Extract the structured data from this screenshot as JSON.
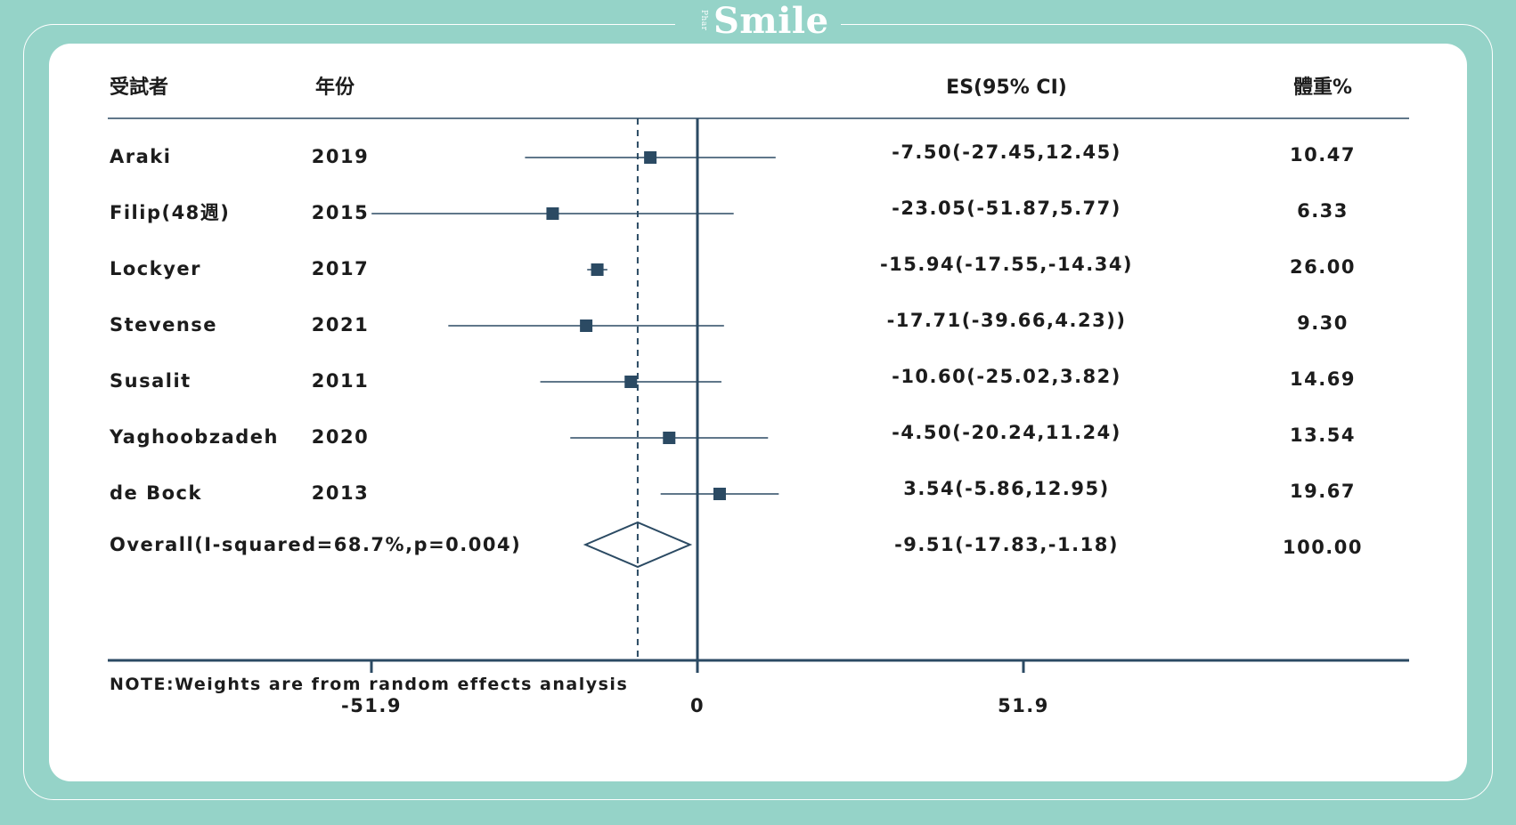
{
  "brand": {
    "tag": "Phar",
    "name": "Smile"
  },
  "colors": {
    "background": "#95d3c8",
    "card": "#ffffff",
    "marker": "#2b4a63",
    "axis": "#2b4a63"
  },
  "chart_data": {
    "type": "forest",
    "headers": {
      "study": "受試者",
      "year": "年份",
      "es": "ES(95% CI)",
      "weight": "體重%"
    },
    "studies": [
      {
        "name": "Araki",
        "year": "2019",
        "es": -7.5,
        "lo": -27.45,
        "hi": 12.45,
        "es_text": "-7.50(-27.45,12.45)",
        "weight": "10.47"
      },
      {
        "name": "Filip(48週)",
        "year": "2015",
        "es": -23.05,
        "lo": -51.87,
        "hi": 5.77,
        "es_text": "-23.05(-51.87,5.77)",
        "weight": "6.33"
      },
      {
        "name": "Lockyer",
        "year": "2017",
        "es": -15.94,
        "lo": -17.55,
        "hi": -14.34,
        "es_text": "-15.94(-17.55,-14.34)",
        "weight": "26.00"
      },
      {
        "name": "Stevense",
        "year": "2021",
        "es": -17.71,
        "lo": -39.66,
        "hi": 4.23,
        "es_text": "-17.71(-39.66,4.23))",
        "weight": "9.30"
      },
      {
        "name": "Susalit",
        "year": "2011",
        "es": -10.6,
        "lo": -25.02,
        "hi": 3.82,
        "es_text": "-10.60(-25.02,3.82)",
        "weight": "14.69"
      },
      {
        "name": "Yaghoobzadeh",
        "year": "2020",
        "es": -4.5,
        "lo": -20.24,
        "hi": 11.24,
        "es_text": "-4.50(-20.24,11.24)",
        "weight": "13.54"
      },
      {
        "name": "de Bock",
        "year": "2013",
        "es": 3.54,
        "lo": -5.86,
        "hi": 12.95,
        "es_text": "3.54(-5.86,12.95)",
        "weight": "19.67"
      }
    ],
    "overall": {
      "label": "Overall(I-squared=68.7%,p=0.004)",
      "es": -9.51,
      "lo": -17.83,
      "hi": -1.18,
      "es_text": "-9.51(-17.83,-1.18)",
      "weight": "100.00"
    },
    "note": "NOTE:Weights are from random effects analysis",
    "x_ticks": [
      {
        "value": -51.9,
        "label": "-51.9"
      },
      {
        "value": 0,
        "label": "0"
      },
      {
        "value": 51.9,
        "label": "51.9"
      }
    ],
    "xlim": [
      -51.9,
      51.9
    ],
    "null_line": 0,
    "overall_line": -9.51
  }
}
